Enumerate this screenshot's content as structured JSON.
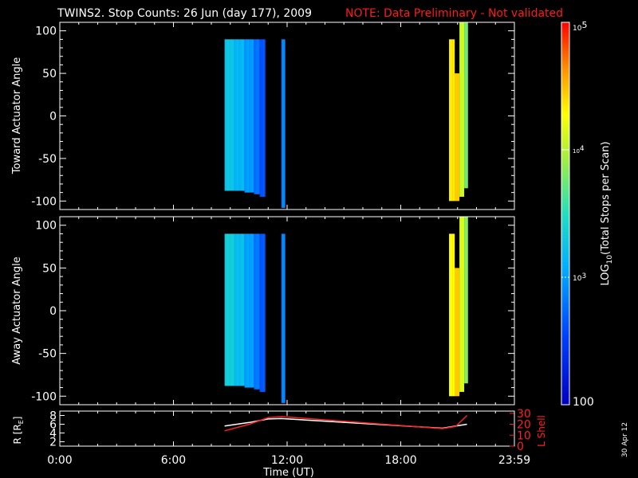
{
  "header": {
    "title": "TWINS2. Stop Counts: 26 Jun (day 177), 2009",
    "note": "NOTE: Data Preliminary - Not validated",
    "note_color": "#ff1a1a"
  },
  "date_stamp": "30 Apr 12",
  "chart_data": [
    {
      "type": "heatmap",
      "panel": "toward",
      "ylabel": "Toward Actuator Angle",
      "ylim": [
        -110,
        110
      ],
      "yticks": [
        -100,
        -50,
        0,
        50,
        100
      ],
      "xlim_hours": [
        0,
        24
      ],
      "xticks": [
        "0:00",
        "6:00",
        "12:00",
        "18:00",
        "23:59"
      ],
      "blocks": [
        {
          "t0": 8.7,
          "t1": 9.2,
          "a0": -88,
          "a1": 90,
          "level": 0.42
        },
        {
          "t0": 9.2,
          "t1": 9.75,
          "a0": -88,
          "a1": 90,
          "level": 0.38
        },
        {
          "t0": 9.75,
          "t1": 10.25,
          "a0": -90,
          "a1": 90,
          "level": 0.33
        },
        {
          "t0": 10.25,
          "t1": 10.55,
          "a0": -92,
          "a1": 90,
          "level": 0.26
        },
        {
          "t0": 10.55,
          "t1": 10.85,
          "a0": -95,
          "a1": 90,
          "level": 0.21
        },
        {
          "t0": 11.7,
          "t1": 11.9,
          "a0": -108,
          "a1": 90,
          "level": 0.3
        },
        {
          "t0": 20.55,
          "t1": 20.85,
          "a0": -100,
          "a1": 90,
          "level": 0.78
        },
        {
          "t0": 20.85,
          "t1": 21.1,
          "a0": -100,
          "a1": 50,
          "level": 0.82
        },
        {
          "t0": 21.1,
          "t1": 21.35,
          "a0": -95,
          "a1": 110,
          "level": 0.7
        },
        {
          "t0": 21.35,
          "t1": 21.55,
          "a0": -85,
          "a1": 110,
          "level": 0.6
        }
      ]
    },
    {
      "type": "heatmap",
      "panel": "away",
      "ylabel": "Away Actuator Angle",
      "ylim": [
        -110,
        110
      ],
      "yticks": [
        -100,
        -50,
        0,
        50,
        100
      ],
      "xlim_hours": [
        0,
        24
      ],
      "xticks": [
        "0:00",
        "6:00",
        "12:00",
        "18:00",
        "23:59"
      ],
      "blocks": [
        {
          "t0": 8.7,
          "t1": 9.2,
          "a0": -88,
          "a1": 90,
          "level": 0.45
        },
        {
          "t0": 9.2,
          "t1": 9.75,
          "a0": -88,
          "a1": 90,
          "level": 0.4
        },
        {
          "t0": 9.75,
          "t1": 10.25,
          "a0": -90,
          "a1": 90,
          "level": 0.34
        },
        {
          "t0": 10.25,
          "t1": 10.55,
          "a0": -92,
          "a1": 90,
          "level": 0.27
        },
        {
          "t0": 10.55,
          "t1": 10.85,
          "a0": -95,
          "a1": 90,
          "level": 0.22
        },
        {
          "t0": 11.7,
          "t1": 11.9,
          "a0": -108,
          "a1": 90,
          "level": 0.3
        },
        {
          "t0": 20.55,
          "t1": 20.85,
          "a0": -100,
          "a1": 90,
          "level": 0.76
        },
        {
          "t0": 20.85,
          "t1": 21.1,
          "a0": -100,
          "a1": 50,
          "level": 0.82
        },
        {
          "t0": 21.1,
          "t1": 21.35,
          "a0": -95,
          "a1": 110,
          "level": 0.72
        },
        {
          "t0": 21.35,
          "t1": 21.55,
          "a0": -85,
          "a1": 110,
          "level": 0.62
        }
      ]
    },
    {
      "type": "line",
      "panel": "orbit",
      "xlabel": "Time (UT)",
      "xlim_hours": [
        0,
        24
      ],
      "xticks": [
        "0:00",
        "6:00",
        "12:00",
        "18:00",
        "23:59"
      ],
      "ylabel_left": "R [R",
      "ylabel_left_sub": "E",
      "ylabel_left_close": "]",
      "ylim_left": [
        1,
        9
      ],
      "yticks_left": [
        2,
        4,
        6,
        8
      ],
      "ylabel_right": "L Shell",
      "ylim_right": [
        0,
        32
      ],
      "yticks_right": [
        0,
        10,
        20,
        30
      ],
      "series": [
        {
          "axis": "left",
          "color": "#ffffff",
          "x": [
            8.7,
            10.0,
            11.0,
            11.7,
            20.2,
            21.5
          ],
          "y": [
            5.6,
            6.4,
            7.2,
            7.3,
            5.1,
            6.0
          ]
        },
        {
          "axis": "right",
          "color": "#ff2020",
          "x": [
            8.7,
            10.0,
            11.0,
            11.7,
            20.2,
            20.9,
            21.5
          ],
          "y": [
            14,
            20,
            26,
            27,
            16,
            18,
            28
          ]
        }
      ]
    }
  ],
  "colorbar": {
    "label": "LOG",
    "label_sub": "10",
    "label_rest": "(Total Stops per Scan)",
    "tick_max": "10",
    "tick_max_exp": "5",
    "tick_mid": "10",
    "tick_mid_exp": "4",
    "tick_low": "10",
    "tick_low_exp": "3",
    "tick_min": "100",
    "log_range": [
      2,
      5
    ]
  }
}
